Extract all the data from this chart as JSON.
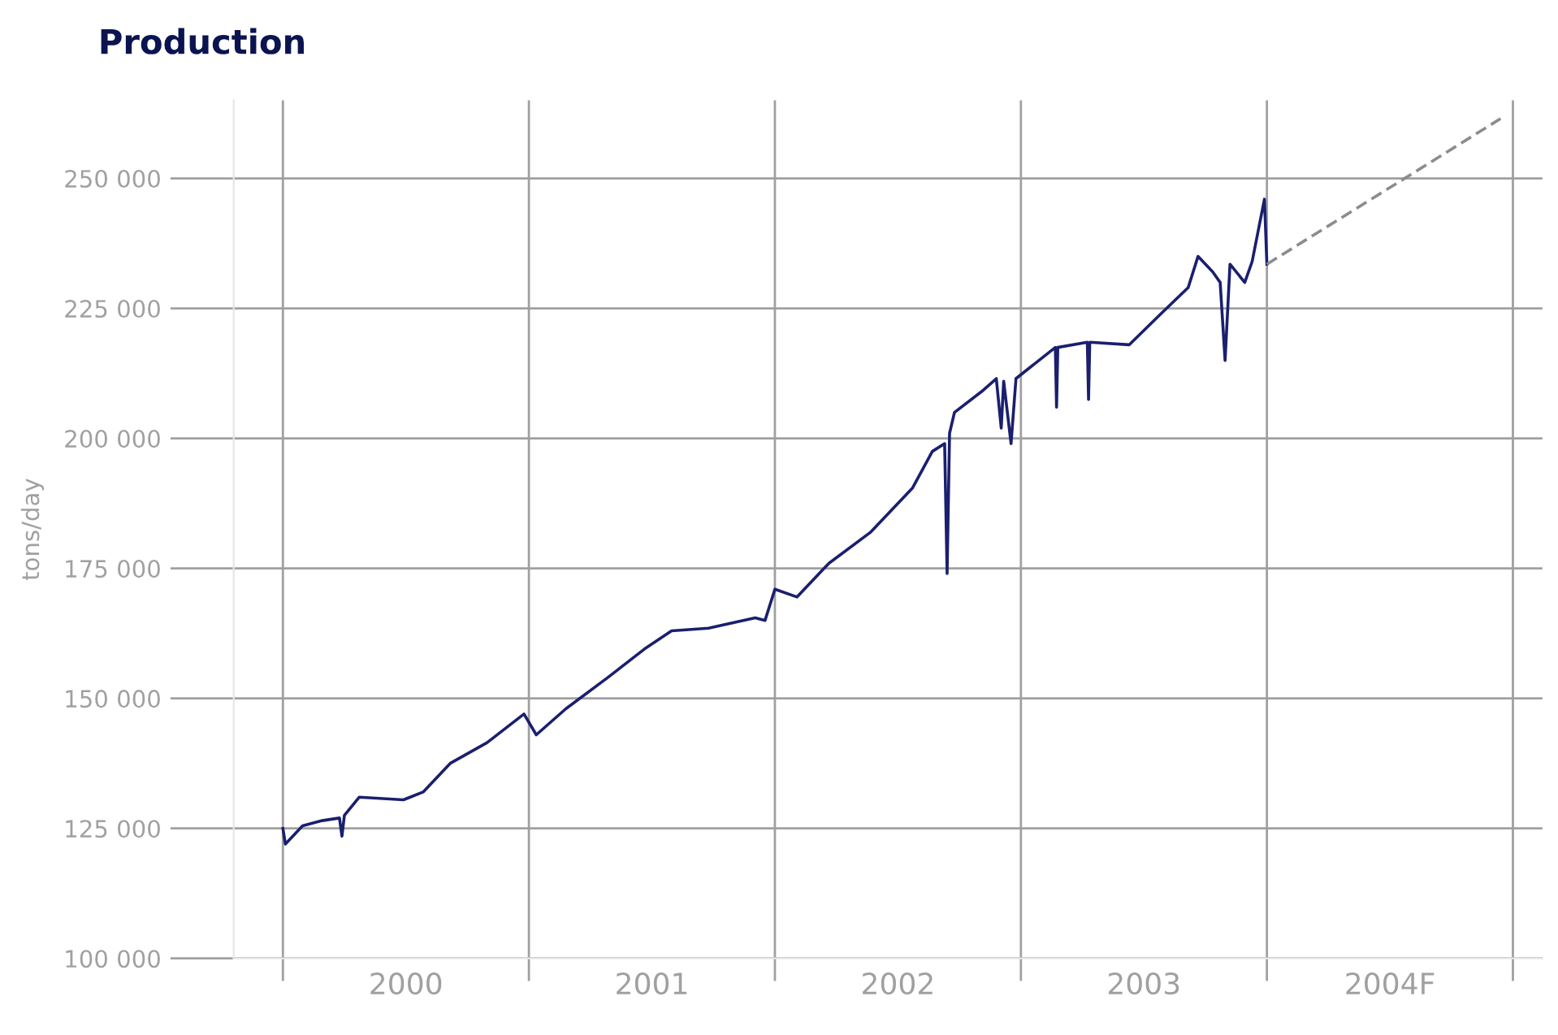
{
  "chart_data": {
    "type": "line",
    "title": "Production",
    "ylabel": "tons/day",
    "xlim": [
      1999.8,
      2005.12
    ],
    "ylim": [
      100000,
      265000
    ],
    "xticks": [
      {
        "value": 2000,
        "label": null
      },
      {
        "value": 2000.5,
        "label": "2000"
      },
      {
        "value": 2001,
        "label": null
      },
      {
        "value": 2001.5,
        "label": "2001"
      },
      {
        "value": 2002,
        "label": null
      },
      {
        "value": 2002.5,
        "label": "2002"
      },
      {
        "value": 2003,
        "label": null
      },
      {
        "value": 2003.5,
        "label": "2003"
      },
      {
        "value": 2004,
        "label": null
      },
      {
        "value": 2004.5,
        "label": "2004F"
      },
      {
        "value": 2005,
        "label": null
      }
    ],
    "yticks": [
      {
        "value": 100000,
        "label": "100 000"
      },
      {
        "value": 125000,
        "label": "125 000"
      },
      {
        "value": 150000,
        "label": "150 000"
      },
      {
        "value": 175000,
        "label": "175 000"
      },
      {
        "value": 200000,
        "label": "200 000"
      },
      {
        "value": 225000,
        "label": "225 000"
      },
      {
        "value": 250000,
        "label": "250 000"
      }
    ],
    "grid": true,
    "series": [
      {
        "color": "#1a1f6e",
        "line_style": "solid",
        "x": [
          2000.0,
          2000.01,
          2000.08,
          2000.16,
          2000.23,
          2000.24,
          2000.25,
          2000.31,
          2000.49,
          2000.57,
          2000.68,
          2000.83,
          2000.98,
          2001.03,
          2001.15,
          2001.32,
          2001.47,
          2001.58,
          2001.73,
          2001.92,
          2001.96,
          2002.0,
          2002.09,
          2002.22,
          2002.39,
          2002.56,
          2002.64,
          2002.69,
          2002.7,
          2002.71,
          2002.73,
          2002.84,
          2002.9,
          2002.92,
          2002.93,
          2002.96,
          2002.98,
          2003.14,
          2003.145,
          2003.15,
          2003.27,
          2003.275,
          2003.28,
          2003.44,
          2003.57,
          2003.68,
          2003.72,
          2003.78,
          2003.81,
          2003.83,
          2003.85,
          2003.91,
          2003.94,
          2003.99,
          2004.0
        ],
        "values": [
          125000,
          122000,
          125500,
          126500,
          127000,
          123500,
          127500,
          131000,
          130500,
          132000,
          137500,
          141500,
          147000,
          143000,
          148000,
          154000,
          159500,
          163000,
          163500,
          165500,
          165000,
          171000,
          169500,
          176000,
          182000,
          190500,
          197500,
          199000,
          174000,
          201000,
          205000,
          209000,
          211500,
          202000,
          211000,
          199000,
          211500,
          217500,
          206000,
          217500,
          218500,
          207500,
          218500,
          218000,
          224000,
          229000,
          235000,
          232000,
          230000,
          215000,
          233500,
          230000,
          234000,
          246000,
          233500
        ]
      },
      {
        "color": "#8c8c8c",
        "line_style": "dashed",
        "x": [
          2004.0,
          2004.95
        ],
        "values": [
          233500,
          261500
        ]
      }
    ]
  }
}
